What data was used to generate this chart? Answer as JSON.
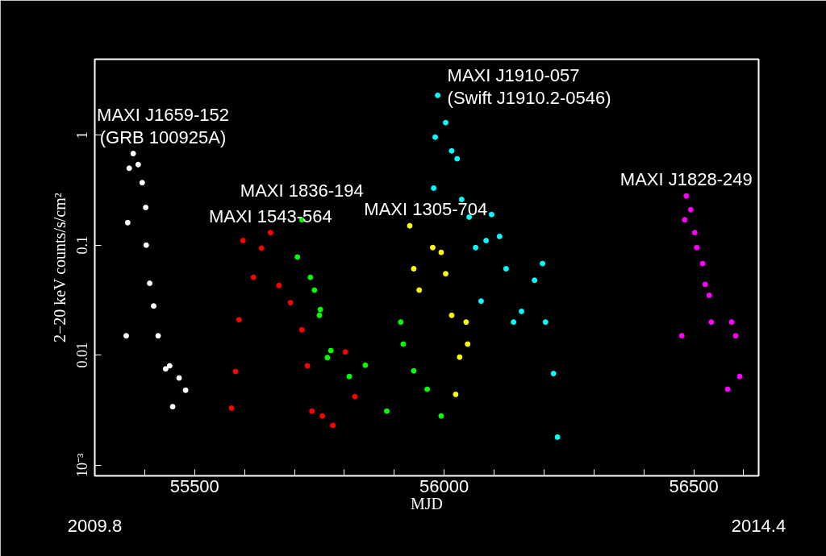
{
  "chart_data": {
    "type": "scatter",
    "xlabel": "MJD",
    "ylabel": "2−20 keV counts/s/cm²",
    "xlim": [
      55300,
      56630
    ],
    "ylim": [
      0.0008,
      4.9
    ],
    "log": "y",
    "grid": false,
    "legend": false,
    "marker": "circle",
    "xticks": [
      {
        "value": 55400,
        "label": null
      },
      55500,
      {
        "value": 55600,
        "label": null
      },
      {
        "value": 55700,
        "label": null
      },
      {
        "value": 55800,
        "label": null
      },
      {
        "value": 55900,
        "label": null
      },
      56000,
      {
        "value": 56100,
        "label": null
      },
      {
        "value": 56200,
        "label": null
      },
      {
        "value": 56300,
        "label": null
      },
      {
        "value": 56400,
        "label": null
      },
      56500,
      {
        "value": 56600,
        "label": null
      }
    ],
    "yticks": [
      {
        "value": 0.001,
        "label": "10⁻³"
      },
      0.01,
      0.1,
      1
    ],
    "series": [
      {
        "name": "MAXI J1659-152\n(GRB 100925A)",
        "color": "#ffffff",
        "x": [
          55363,
          55366,
          55369,
          55377,
          55387,
          55395,
          55402,
          55403,
          55410,
          55418,
          55427,
          55442,
          55450,
          55456,
          55469,
          55482
        ],
        "values": [
          0.015,
          0.16,
          0.5,
          0.68,
          0.54,
          0.37,
          0.22,
          0.1,
          0.045,
          0.028,
          0.015,
          0.0075,
          0.008,
          0.0034,
          0.0062,
          0.0048
        ]
      },
      {
        "name": "MAXI 1543-564",
        "color": "#ff0000",
        "x": [
          55574,
          55582,
          55589,
          55597,
          55618,
          55634,
          55652,
          55669,
          55692,
          55715,
          55726,
          55735,
          55756,
          55777,
          55802,
          55821
        ],
        "values": [
          0.0033,
          0.0071,
          0.021,
          0.11,
          0.051,
          0.094,
          0.13,
          0.043,
          0.03,
          0.017,
          0.008,
          0.0031,
          0.0028,
          0.0023,
          0.0107,
          0.0042
        ]
      },
      {
        "name": "MAXI 1836-194",
        "color": "#00ff00",
        "x": [
          55706,
          55715,
          55732,
          55740,
          55750,
          55752,
          55766,
          55773,
          55810,
          55842,
          55885,
          55913,
          55918,
          55939,
          55966,
          55994
        ],
        "values": [
          0.078,
          0.17,
          0.051,
          0.039,
          0.023,
          0.026,
          0.0095,
          0.011,
          0.0064,
          0.0081,
          0.0031,
          0.02,
          0.0126,
          0.0072,
          0.0049,
          0.0028
        ]
      },
      {
        "name": "MAXI 1305-704",
        "color": "#ffff00",
        "x": [
          55931,
          55939,
          55950,
          55977,
          55994,
          56003,
          56015,
          56023,
          56031,
          56044,
          56047
        ],
        "values": [
          0.15,
          0.061,
          0.039,
          0.095,
          0.086,
          0.055,
          0.023,
          0.0044,
          0.0096,
          0.02,
          0.0126
        ]
      },
      {
        "name": "MAXI J1910-057\n(Swift J1910.2-0546)",
        "color": "#00ffff",
        "x": [
          55979,
          55982,
          55987,
          56003,
          56015,
          56026,
          56035,
          56050,
          56063,
          56074,
          56084,
          56095,
          56111,
          56124,
          56139,
          56155,
          56181,
          56197,
          56203,
          56219,
          56227
        ],
        "values": [
          0.33,
          0.96,
          2.3,
          1.3,
          0.72,
          0.61,
          0.26,
          0.18,
          0.095,
          0.031,
          0.11,
          0.19,
          0.12,
          0.061,
          0.02,
          0.025,
          0.048,
          0.068,
          0.02,
          0.0068,
          0.0018
        ]
      },
      {
        "name": "MAXI J1828-249",
        "color": "#ff00ff",
        "x": [
          56476,
          56482,
          56485,
          56494,
          56502,
          56506,
          56518,
          56523,
          56531,
          56535,
          56568,
          56576,
          56584,
          56592
        ],
        "values": [
          0.015,
          0.17,
          0.28,
          0.21,
          0.13,
          0.095,
          0.068,
          0.044,
          0.035,
          0.02,
          0.0049,
          0.02,
          0.015,
          0.0064
        ]
      }
    ],
    "annotations": [
      "2009.8",
      "2014.4"
    ]
  }
}
